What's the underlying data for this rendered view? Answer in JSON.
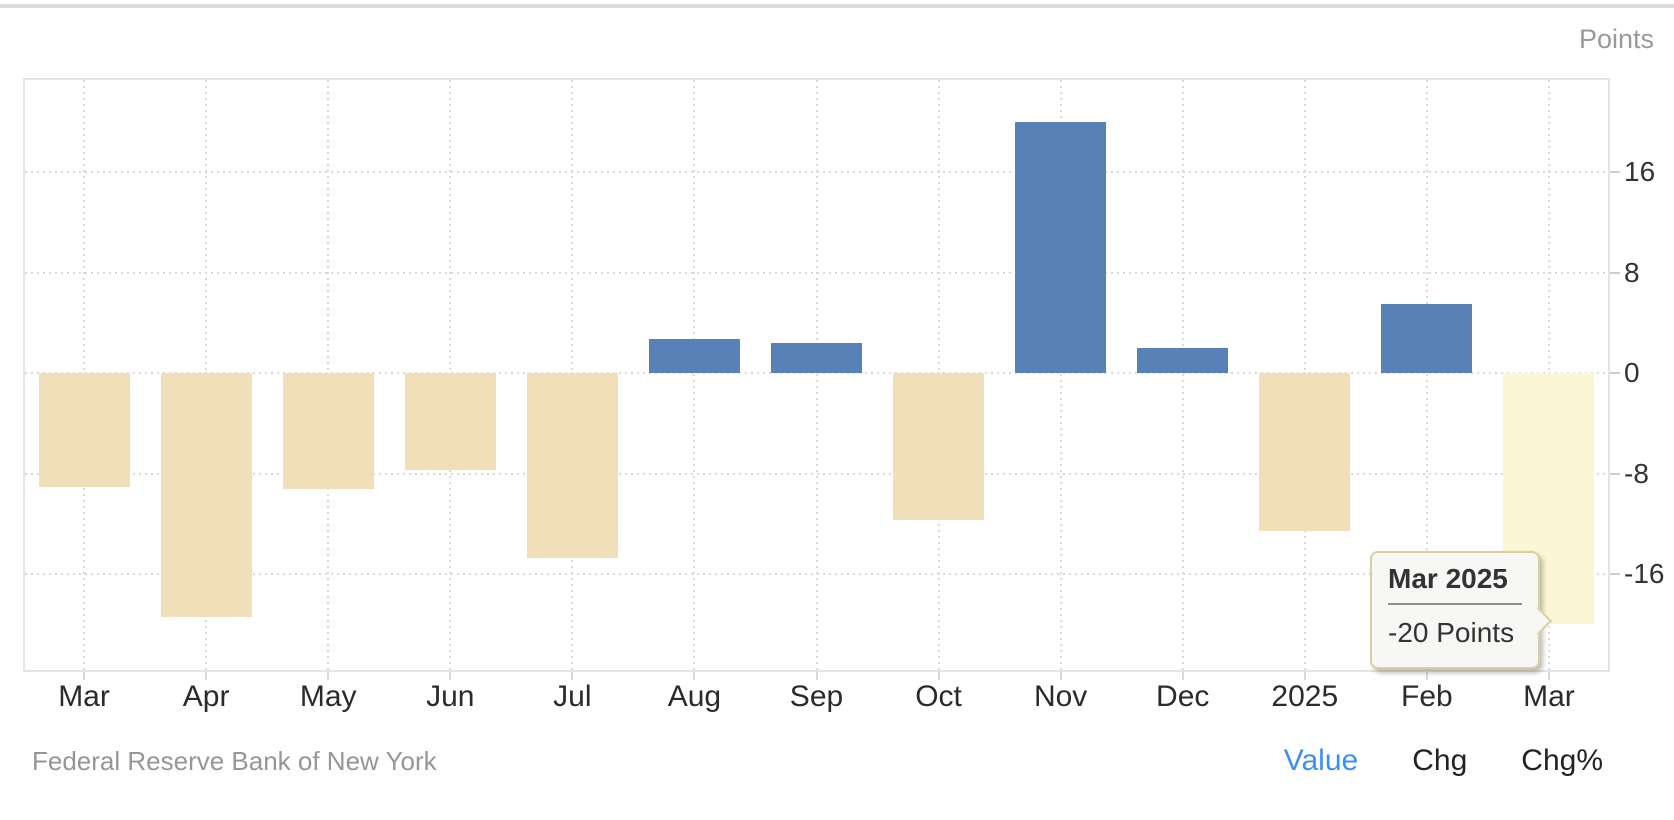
{
  "chart_data": {
    "type": "bar",
    "title": "",
    "unit_label": "Points",
    "categories": [
      "Mar",
      "Apr",
      "May",
      "Jun",
      "Jul",
      "Aug",
      "Sep",
      "Oct",
      "Nov",
      "Dec",
      "2025",
      "Feb",
      "Mar"
    ],
    "values": [
      -9.1,
      -19.4,
      -9.2,
      -7.7,
      -14.7,
      2.7,
      2.4,
      -11.7,
      20.0,
      2.0,
      -12.6,
      5.5,
      -20.0
    ],
    "highlight_index": 12,
    "yticks": [
      16,
      8,
      0,
      -8,
      -16
    ],
    "ylim": [
      -23.8,
      23.5
    ],
    "grid": "dotted",
    "legend_position": "none",
    "colors": {
      "positive_bar": "#5881B7",
      "negative_bar": "#F0DFB8",
      "highlight_bar": "#FCF6D4",
      "gridline": "#d9d9d9",
      "axis_label": "#333333",
      "unit_label": "#999999"
    }
  },
  "tooltip": {
    "title": "Mar 2025",
    "value": "-20 Points",
    "background": "#f7f7f5",
    "border_color": "#d9d0a2"
  },
  "footer": {
    "source": "Federal Reserve Bank of New York",
    "tabs": [
      {
        "label": "Value",
        "active": true
      },
      {
        "label": "Chg",
        "active": false
      },
      {
        "label": "Chg%",
        "active": false
      }
    ],
    "active_color": "#3F8EF7"
  }
}
